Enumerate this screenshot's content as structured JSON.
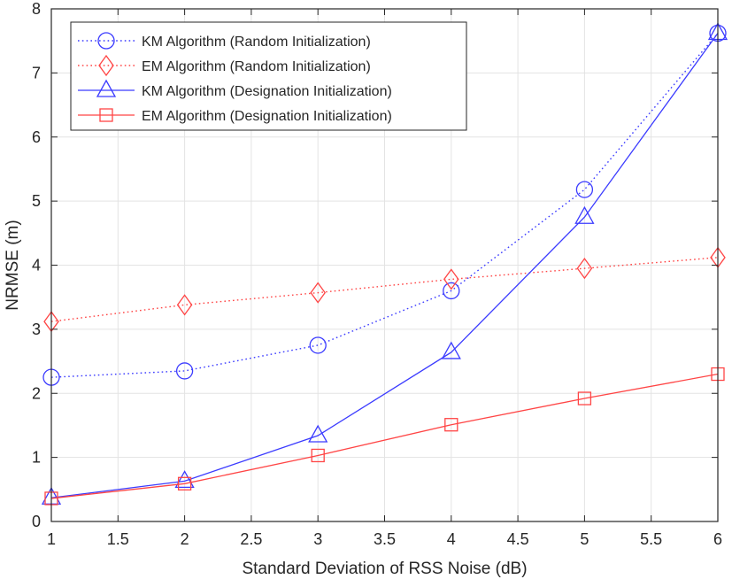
{
  "chart_data": {
    "type": "line",
    "xlabel": "Standard Deviation of RSS Noise (dB)",
    "ylabel": "NRMSE (m)",
    "xlim": [
      1,
      6
    ],
    "ylim": [
      0,
      8
    ],
    "xticks": [
      1,
      1.5,
      2,
      2.5,
      3,
      3.5,
      4,
      4.5,
      5,
      5.5,
      6
    ],
    "yticks": [
      0,
      1,
      2,
      3,
      4,
      5,
      6,
      7,
      8
    ],
    "grid": true,
    "legend_position": "top-left",
    "x": [
      1,
      2,
      3,
      4,
      5,
      6
    ],
    "series": [
      {
        "name": "KM Algorithm (Random Initialization)",
        "values": [
          2.25,
          2.35,
          2.75,
          3.6,
          5.18,
          7.62
        ],
        "color": "#3b3bff",
        "line": "dotted",
        "marker": "circle"
      },
      {
        "name": "EM Algorithm (Random Initialization)",
        "values": [
          3.12,
          3.38,
          3.57,
          3.78,
          3.95,
          4.12
        ],
        "color": "#ff4545",
        "line": "dotted",
        "marker": "diamond"
      },
      {
        "name": "KM Algorithm (Designation Initialization)",
        "values": [
          0.37,
          0.63,
          1.34,
          2.64,
          4.75,
          7.62
        ],
        "color": "#3b3bff",
        "line": "solid",
        "marker": "triangle"
      },
      {
        "name": "EM Algorithm (Designation Initialization)",
        "values": [
          0.36,
          0.59,
          1.03,
          1.51,
          1.92,
          2.3
        ],
        "color": "#ff4545",
        "line": "solid",
        "marker": "square"
      }
    ]
  }
}
